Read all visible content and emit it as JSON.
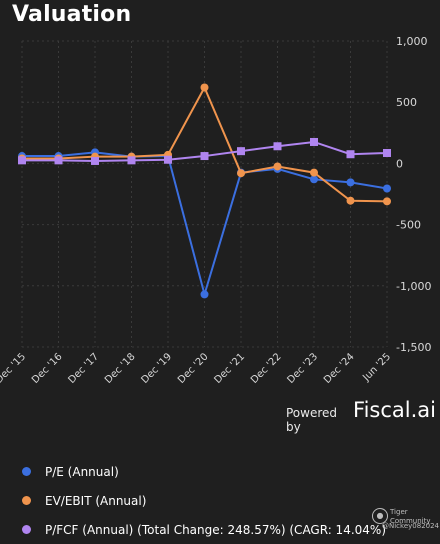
{
  "header": {
    "title": "Valuation"
  },
  "footer": {
    "powered_by": "Powered by",
    "brand": "Fiscal.ai"
  },
  "watermark": {
    "brand": "Tiger Community",
    "user": "@Nickey082024"
  },
  "colors": {
    "pe": "#3b6fe0",
    "ev": "#f0944d",
    "pfcf": "#b085f0",
    "grid": "#3a3a3a"
  },
  "chart_data": {
    "type": "line",
    "title": "Valuation",
    "categories": [
      "Dec '15",
      "Dec '16",
      "Dec '17",
      "Dec '18",
      "Dec '19",
      "Dec '20",
      "Dec '21",
      "Dec '22",
      "Dec '23",
      "Dec '24",
      "Jun '25"
    ],
    "y_ticks": [
      "1,000",
      "500",
      "0",
      "-500",
      "-1,000",
      "-1,500"
    ],
    "y_tick_values": [
      1000,
      500,
      0,
      -500,
      -1000,
      -1500
    ],
    "ylim": [
      -1500,
      1000
    ],
    "grid": true,
    "legend_position": "bottom",
    "series": [
      {
        "name": "P/E (Annual)",
        "marker": "circle",
        "values": [
          60,
          60,
          90,
          55,
          60,
          -1070,
          -75,
          -45,
          -130,
          -155,
          -205
        ]
      },
      {
        "name": "EV/EBIT (Annual)",
        "marker": "circle",
        "values": [
          40,
          40,
          55,
          55,
          70,
          620,
          -80,
          -25,
          -75,
          -305,
          -310
        ]
      },
      {
        "name": "P/FCF (Annual) (Total Change: 248.57%) (CAGR: 14.04%)",
        "marker": "square",
        "values": [
          25,
          25,
          20,
          25,
          30,
          60,
          100,
          140,
          175,
          75,
          85
        ]
      }
    ]
  }
}
